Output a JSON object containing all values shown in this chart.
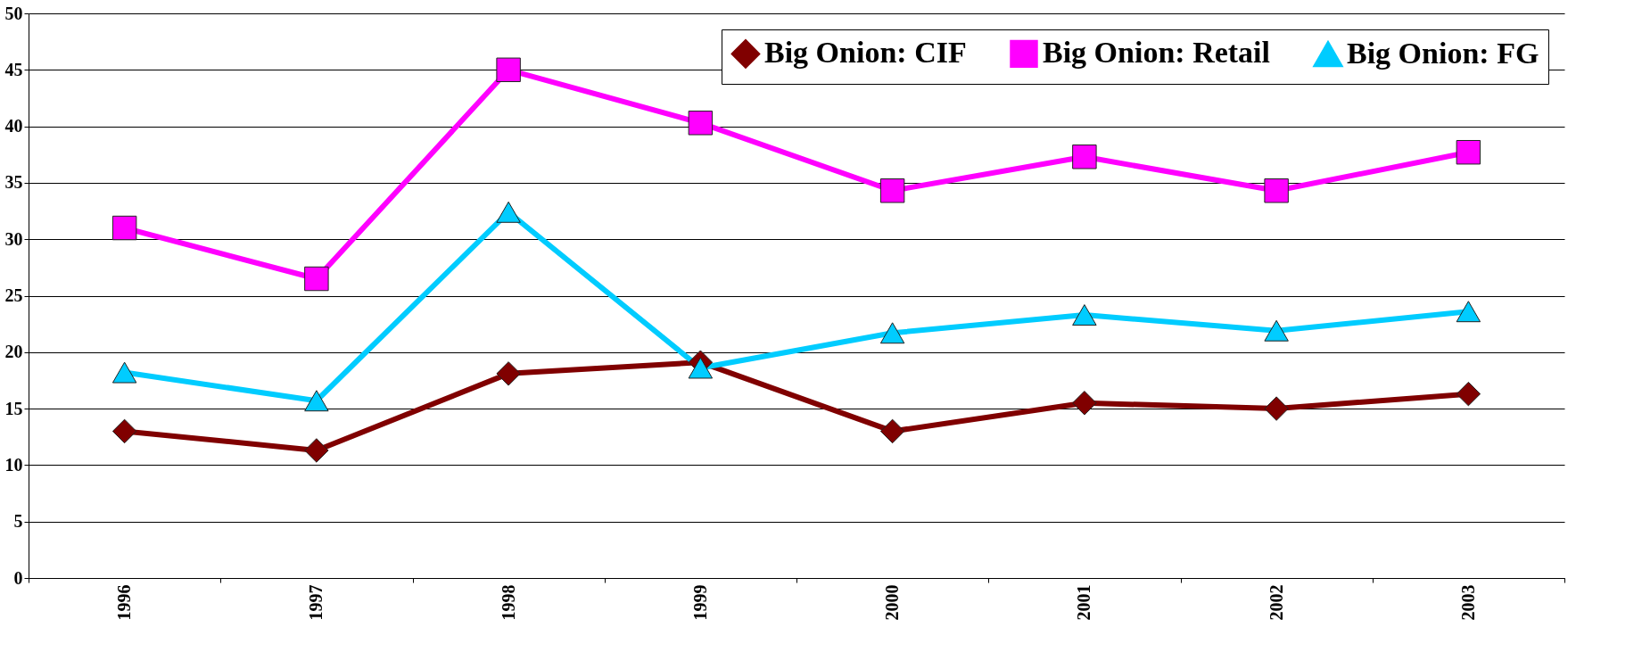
{
  "chart_data": {
    "type": "line",
    "categories": [
      "1996",
      "1997",
      "1998",
      "1999",
      "2000",
      "2001",
      "2002",
      "2003"
    ],
    "series": [
      {
        "name": "Big Onion: CIF",
        "color": "#800000",
        "marker": "diamond",
        "values": [
          13.0,
          11.3,
          18.1,
          19.1,
          13.0,
          15.5,
          15.0,
          16.3
        ]
      },
      {
        "name": "Big Onion: Retail",
        "color": "#ff00ff",
        "marker": "square",
        "values": [
          31.0,
          26.5,
          45.0,
          40.3,
          34.3,
          37.3,
          34.3,
          37.7
        ]
      },
      {
        "name": "Big Onion: FG",
        "color": "#00ccff",
        "marker": "triangle",
        "values": [
          18.2,
          15.7,
          32.4,
          18.6,
          21.7,
          23.3,
          21.9,
          23.6
        ]
      }
    ],
    "ylim": [
      0,
      50
    ],
    "yticks": [
      0,
      5,
      10,
      15,
      20,
      25,
      30,
      35,
      40,
      45,
      50
    ],
    "grid": "y",
    "legend": "top right"
  }
}
